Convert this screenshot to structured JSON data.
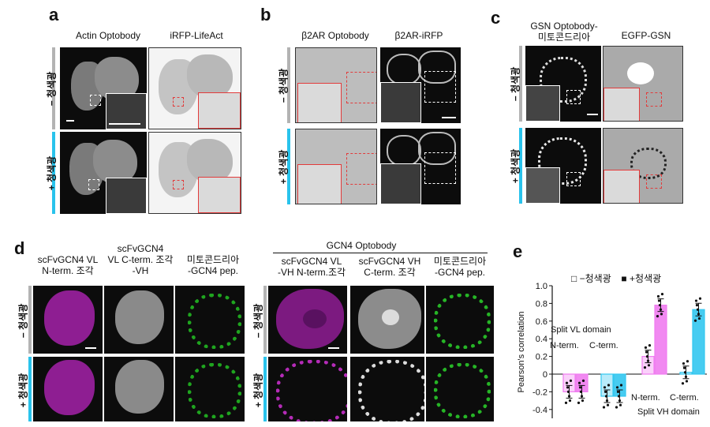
{
  "panels": {
    "a": {
      "label": "a",
      "cols": [
        "Actin Optobody",
        "iRFP-LifeAct"
      ]
    },
    "b": {
      "label": "b",
      "cols": [
        "β2AR Optobody",
        "β2AR-iRFP"
      ]
    },
    "c": {
      "label": "c",
      "col1_line1": "GSN Optobody-",
      "col1_line2": "미토콘드리아",
      "col2": "EGFP-GSN"
    },
    "d": {
      "label": "d",
      "c1_l1": "scFvGCN4 VL",
      "c1_l2": "N-term. 조각",
      "c2_l1": "scFvGCN4",
      "c2_l2": "VL C-term. 조각",
      "c2_l3": "-VH",
      "c3_l1": "미토콘드리아",
      "c3_l2": "-GCN4 pep.",
      "group_title": "GCN4 Optobody",
      "c4_l1": "scFvGCN4 VL",
      "c4_l2": "-VH N-term.조각",
      "c5_l1": "scFvGCN4 VH",
      "c5_l2": "C-term. 조각",
      "c6_l1": "미토콘드리아",
      "c6_l2": "-GCN4 pep."
    },
    "e": {
      "label": "e"
    }
  },
  "conditions": {
    "minus": "− 청색광",
    "plus": "+ 청색광"
  },
  "legend": {
    "open_box": "□",
    "minus": "−청색광",
    "filled_box": "■",
    "plus": "+청색광"
  },
  "annotations": {
    "split_vl": "Split VL domain",
    "split_vh": "Split VH domain",
    "nterm": "N-term.",
    "cterm": "C-term."
  },
  "colors": {
    "magenta": "#f07cf0",
    "cyan": "#33c7f0",
    "grey_bar": "#b3b3b3",
    "blue_bar": "#29c3ec"
  },
  "chart_data": {
    "type": "bar",
    "ylabel": "Pearson's correlation",
    "ylim": [
      -0.5,
      1.0
    ],
    "yticks": [
      "-0.4",
      "-0.2",
      "0",
      "0.2",
      "0.4",
      "0.6",
      "0.8",
      "1.0"
    ],
    "categories": [
      "N-term.",
      "C-term.",
      "N-term.",
      "C-term."
    ],
    "series": [
      {
        "name": "−청색광",
        "values": [
          -0.2,
          -0.25,
          0.2,
          0.02
        ]
      },
      {
        "name": "+청색광",
        "values": [
          -0.2,
          -0.25,
          0.78,
          0.73
        ]
      }
    ]
  }
}
